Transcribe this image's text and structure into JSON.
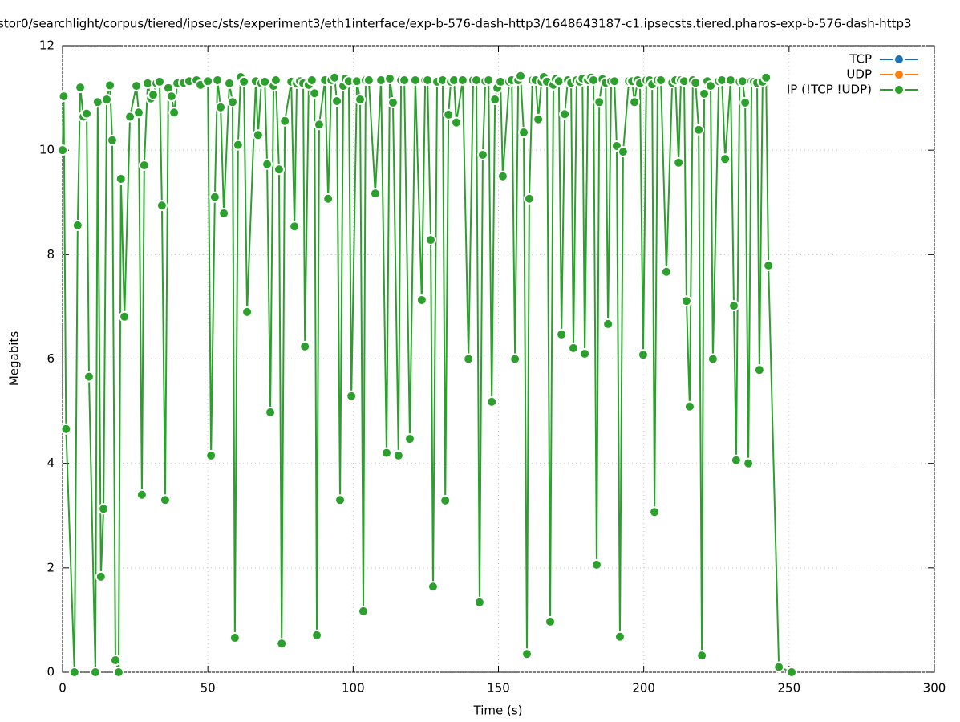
{
  "chart_data": {
    "type": "line",
    "title": "stor0/searchlight/corpus/tiered/ipsec/sts/experiment3/eth1interface/exp-b-576-dash-http3/1648643187-c1.ipsecsts.tiered.pharos-exp-b-576-dash-http3",
    "x_label": "Time (s)",
    "y_label": "Megabits",
    "xlim": [
      0,
      300
    ],
    "xticks": [
      0,
      50,
      100,
      150,
      200,
      250,
      300
    ],
    "ylim": [
      0,
      12
    ],
    "yticks": [
      0,
      2,
      4,
      6,
      8,
      10,
      12
    ],
    "grid": true,
    "legend": "top-right",
    "series": [
      {
        "name": "TCP",
        "color": "#1f6fb4",
        "x": [],
        "values": []
      },
      {
        "name": "UDP",
        "color": "#ff7f0e",
        "x": [],
        "values": []
      },
      {
        "name": "IP (!TCP  !UDP)",
        "color": "#2ca02c",
        "x": [
          0,
          0.4,
          1.2,
          4.1,
          5.2,
          6.1,
          7.2,
          8.3,
          9.1,
          11.3,
          12.1,
          13.2,
          14.1,
          15.2,
          16.3,
          17.1,
          18.2,
          19.3,
          20.1,
          21.3,
          23.2,
          25.4,
          26.2,
          27.3,
          28.1,
          29.3,
          30.4,
          31.2,
          32.3,
          33.4,
          34.2,
          35.3,
          36.4,
          37.5,
          38.4,
          39.5,
          41.7,
          43.6,
          46.1,
          47.5,
          50,
          51.1,
          52.4,
          53.3,
          54.4,
          55.5,
          57.4,
          58.5,
          59.3,
          60.4,
          61.3,
          62.4,
          63.5,
          66.5,
          67.3,
          68.4,
          69.6,
          70.4,
          71.5,
          72.6,
          73.4,
          74.5,
          75.4,
          76.5,
          78.7,
          79.8,
          80.6,
          81.7,
          82.8,
          83.4,
          84.7,
          85.8,
          86.7,
          87.5,
          88.3,
          90.3,
          91.4,
          92.5,
          93.6,
          94.4,
          95.5,
          96.6,
          97.4,
          98.5,
          99.4,
          101.3,
          102.4,
          103.5,
          104.3,
          105.4,
          107.6,
          109.6,
          111.5,
          112.6,
          113.7,
          115.6,
          116.5,
          117.6,
          119.5,
          121.4,
          123.6,
          124.8,
          125.6,
          126.7,
          127.5,
          128.9,
          130.8,
          131.7,
          132.8,
          133.6,
          134.7,
          135.5,
          137.7,
          139.7,
          141.3,
          142.4,
          143.5,
          144.6,
          145.5,
          146.6,
          147.7,
          148.8,
          149.6,
          150.7,
          151.5,
          153.7,
          154.6,
          155.7,
          156.8,
          157.6,
          158.7,
          159.8,
          160.6,
          161.7,
          162.8,
          163.7,
          164.8,
          165.6,
          166.7,
          167.8,
          168.9,
          169.7,
          170.8,
          171.7,
          172.8,
          173.9,
          175,
          175.8,
          176.9,
          178,
          178.9,
          179.7,
          180.8,
          181.9,
          182.7,
          183.8,
          184.7,
          185.8,
          186.9,
          187.7,
          188.8,
          189.9,
          190.7,
          191.8,
          192.9,
          194.9,
          196,
          196.8,
          197.9,
          198.7,
          199.8,
          200.9,
          202,
          202.9,
          203.7,
          204.8,
          205.9,
          207.8,
          209.8,
          210.9,
          212,
          212.8,
          213.9,
          214.7,
          215.8,
          216.9,
          217.8,
          218.9,
          220,
          220.8,
          221.9,
          223,
          223.8,
          225.8,
          226.9,
          228,
          229.9,
          231,
          231.8,
          233,
          234,
          234.9,
          236,
          237.1,
          237.9,
          239,
          239.8,
          240.9,
          242.1,
          242.9,
          246.5,
          250.9
        ],
        "values": [
          10.0,
          11.03,
          4.66,
          0,
          8.56,
          11.2,
          10.64,
          10.7,
          5.66,
          0,
          10.92,
          1.83,
          3.13,
          10.97,
          11.24,
          10.19,
          0.23,
          0,
          9.45,
          6.81,
          10.64,
          11.23,
          10.72,
          3.4,
          9.71,
          11.28,
          10.99,
          11.06,
          11.28,
          11.31,
          8.94,
          3.3,
          11.19,
          11.03,
          10.72,
          11.28,
          11.29,
          11.32,
          11.34,
          11.25,
          11.32,
          4.15,
          9.1,
          11.34,
          10.82,
          8.79,
          11.28,
          10.92,
          0.66,
          10.1,
          11.4,
          11.31,
          6.9,
          11.32,
          10.29,
          11.28,
          11.31,
          9.73,
          4.98,
          11.23,
          11.34,
          9.63,
          0.55,
          10.56,
          11.31,
          8.54,
          11.28,
          11.32,
          11.28,
          6.24,
          11.25,
          11.34,
          11.09,
          0.71,
          10.49,
          11.34,
          9.07,
          11.34,
          11.39,
          10.94,
          3.3,
          11.23,
          11.37,
          11.32,
          5.29,
          11.32,
          10.97,
          1.17,
          11.34,
          11.34,
          9.17,
          11.34,
          4.2,
          11.37,
          10.91,
          4.15,
          11.34,
          11.34,
          4.47,
          11.34,
          7.13,
          11.34,
          11.34,
          8.28,
          1.64,
          11.31,
          11.34,
          3.29,
          10.68,
          11.31,
          11.34,
          10.53,
          11.34,
          6.0,
          11.34,
          11.34,
          1.34,
          9.91,
          11.32,
          11.34,
          5.18,
          10.97,
          11.19,
          11.31,
          9.5,
          11.31,
          11.34,
          6.0,
          11.34,
          11.42,
          10.34,
          0.35,
          9.07,
          11.34,
          11.34,
          10.59,
          11.31,
          11.4,
          11.31,
          0.97,
          11.25,
          11.36,
          11.32,
          6.47,
          10.69,
          11.34,
          11.29,
          6.21,
          11.34,
          11.31,
          11.37,
          6.1,
          11.34,
          11.39,
          11.34,
          2.06,
          10.92,
          11.36,
          11.29,
          6.67,
          11.32,
          11.32,
          10.08,
          0.68,
          9.97,
          11.32,
          11.32,
          10.92,
          11.34,
          11.28,
          6.08,
          11.34,
          11.34,
          11.26,
          3.07,
          11.34,
          11.34,
          7.67,
          11.29,
          11.34,
          9.76,
          11.34,
          11.32,
          7.11,
          5.09,
          11.34,
          11.29,
          10.39,
          0.32,
          11.08,
          11.32,
          11.23,
          6.0,
          11.32,
          11.34,
          9.83,
          11.34,
          7.02,
          4.06,
          11.31,
          11.32,
          10.91,
          4.0,
          11.32,
          11.31,
          11.29,
          5.79,
          11.31,
          11.39,
          7.79,
          0.1,
          0
        ]
      }
    ]
  }
}
